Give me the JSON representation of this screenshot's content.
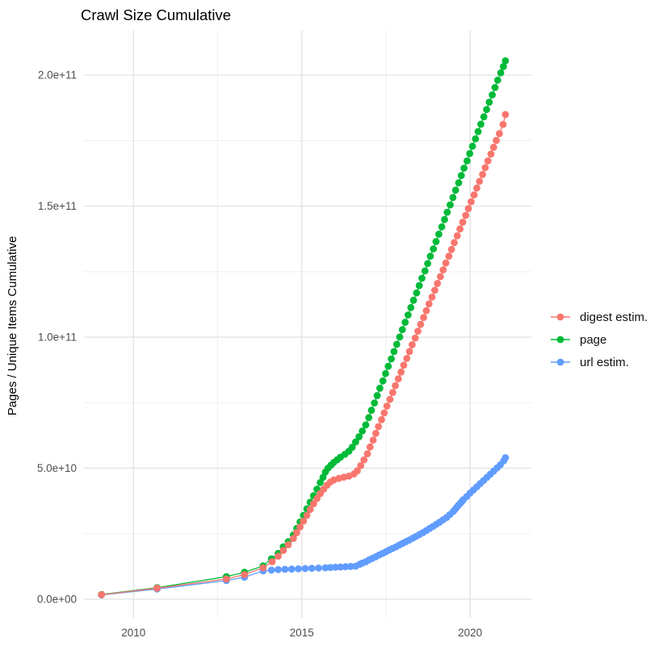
{
  "page": {
    "title": "Crawl Size Cumulative"
  },
  "chart_data": {
    "type": "line",
    "title": "Crawl Size Cumulative",
    "xlabel": "",
    "ylabel": "Pages / Unique Items Cumulative",
    "legend_position": "right",
    "grid": true,
    "value_unit": "billions (values are in units of 1e9)",
    "value_scale": 1000000000,
    "x_domain": [
      2008.53,
      2021.82
    ],
    "y_domain_e9": [
      -7.1,
      217.0
    ],
    "x_ticks": {
      "major": [
        {
          "v": 2010,
          "label": "2010"
        },
        {
          "v": 2015,
          "label": "2015"
        },
        {
          "v": 2020,
          "label": "2020"
        }
      ],
      "minor": [
        2012.5,
        2017.5
      ]
    },
    "y_ticks": {
      "major": [
        {
          "v": 0,
          "label": "0.0e+00"
        },
        {
          "v": 50,
          "label": "5.0e+10"
        },
        {
          "v": 100,
          "label": "1.0e+11"
        },
        {
          "v": 150,
          "label": "1.5e+11"
        },
        {
          "v": 200,
          "label": "2.0e+11"
        }
      ],
      "minor": [
        25,
        75,
        125,
        175
      ]
    },
    "series": [
      {
        "name": "digest estim.",
        "color": "#F8766D",
        "points": [
          [
            2009.05,
            1.7
          ],
          [
            2010.7,
            4.2
          ],
          [
            2012.76,
            7.7
          ],
          [
            2013.3,
            9.4
          ],
          [
            2013.85,
            12.0
          ],
          [
            2014.12,
            14.3
          ],
          [
            2014.3,
            16.4
          ],
          [
            2014.45,
            18.6
          ],
          [
            2014.6,
            20.8
          ],
          [
            2014.75,
            23.2
          ],
          [
            2014.85,
            25.4
          ],
          [
            2014.95,
            27.6
          ],
          [
            2015.05,
            29.8
          ],
          [
            2015.15,
            32.0
          ],
          [
            2015.25,
            34.2
          ],
          [
            2015.35,
            36.4
          ],
          [
            2015.45,
            38.4
          ],
          [
            2015.55,
            40.3
          ],
          [
            2015.65,
            42.0
          ],
          [
            2015.75,
            43.5
          ],
          [
            2015.85,
            44.7
          ],
          [
            2015.95,
            45.5
          ],
          [
            2016.1,
            46.1
          ],
          [
            2016.25,
            46.6
          ],
          [
            2016.4,
            47.0
          ],
          [
            2016.55,
            47.8
          ],
          [
            2016.65,
            49.0
          ],
          [
            2016.75,
            51.0
          ],
          [
            2016.85,
            53.2
          ],
          [
            2016.95,
            55.5
          ],
          [
            2017.03,
            58.1
          ],
          [
            2017.12,
            60.7
          ],
          [
            2017.2,
            63.3
          ],
          [
            2017.28,
            65.9
          ],
          [
            2017.37,
            68.5
          ],
          [
            2017.45,
            71.1
          ],
          [
            2017.53,
            73.7
          ],
          [
            2017.62,
            76.3
          ],
          [
            2017.7,
            78.9
          ],
          [
            2017.78,
            81.5
          ],
          [
            2017.87,
            84.1
          ],
          [
            2017.95,
            86.7
          ],
          [
            2018.03,
            89.3
          ],
          [
            2018.12,
            91.9
          ],
          [
            2018.2,
            94.5
          ],
          [
            2018.28,
            97.1
          ],
          [
            2018.37,
            99.7
          ],
          [
            2018.45,
            102.3
          ],
          [
            2018.53,
            104.9
          ],
          [
            2018.62,
            107.5
          ],
          [
            2018.7,
            110.1
          ],
          [
            2018.78,
            112.7
          ],
          [
            2018.87,
            115.3
          ],
          [
            2018.95,
            117.9
          ],
          [
            2019.03,
            120.5
          ],
          [
            2019.12,
            123.1
          ],
          [
            2019.2,
            125.7
          ],
          [
            2019.28,
            128.3
          ],
          [
            2019.37,
            130.9
          ],
          [
            2019.45,
            133.5
          ],
          [
            2019.53,
            136.1
          ],
          [
            2019.62,
            138.7
          ],
          [
            2019.7,
            141.3
          ],
          [
            2019.78,
            143.9
          ],
          [
            2019.87,
            146.5
          ],
          [
            2019.95,
            149.1
          ],
          [
            2020.03,
            151.7
          ],
          [
            2020.12,
            154.3
          ],
          [
            2020.2,
            156.9
          ],
          [
            2020.28,
            159.5
          ],
          [
            2020.37,
            162.1
          ],
          [
            2020.45,
            164.7
          ],
          [
            2020.53,
            167.3
          ],
          [
            2020.62,
            169.9
          ],
          [
            2020.7,
            172.5
          ],
          [
            2020.78,
            175.1
          ],
          [
            2020.87,
            177.7
          ],
          [
            2020.98,
            181.2
          ],
          [
            2021.05,
            185.0
          ]
        ]
      },
      {
        "name": "page",
        "color": "#00BA38",
        "points": [
          [
            2009.05,
            1.8
          ],
          [
            2010.7,
            4.4
          ],
          [
            2012.76,
            8.6
          ],
          [
            2013.3,
            10.3
          ],
          [
            2013.85,
            12.7
          ],
          [
            2014.1,
            15.4
          ],
          [
            2014.3,
            17.5
          ],
          [
            2014.45,
            20.0
          ],
          [
            2014.6,
            22.0
          ],
          [
            2014.75,
            24.5
          ],
          [
            2014.85,
            27.0
          ],
          [
            2014.95,
            29.5
          ],
          [
            2015.05,
            32.0
          ],
          [
            2015.15,
            34.5
          ],
          [
            2015.25,
            37.0
          ],
          [
            2015.35,
            39.5
          ],
          [
            2015.45,
            42.0
          ],
          [
            2015.55,
            44.5
          ],
          [
            2015.63,
            46.5
          ],
          [
            2015.7,
            48.5
          ],
          [
            2015.78,
            50.0
          ],
          [
            2015.87,
            51.2
          ],
          [
            2015.95,
            52.2
          ],
          [
            2016.05,
            53.2
          ],
          [
            2016.15,
            54.2
          ],
          [
            2016.28,
            55.3
          ],
          [
            2016.4,
            56.5
          ],
          [
            2016.5,
            58.0
          ],
          [
            2016.6,
            60.0
          ],
          [
            2016.7,
            62.0
          ],
          [
            2016.8,
            64.2
          ],
          [
            2016.9,
            66.5
          ],
          [
            2016.99,
            69.3
          ],
          [
            2017.07,
            72.1
          ],
          [
            2017.16,
            74.9
          ],
          [
            2017.24,
            77.7
          ],
          [
            2017.32,
            80.5
          ],
          [
            2017.41,
            83.3
          ],
          [
            2017.49,
            86.1
          ],
          [
            2017.57,
            88.9
          ],
          [
            2017.66,
            91.7
          ],
          [
            2017.74,
            94.5
          ],
          [
            2017.82,
            97.3
          ],
          [
            2017.91,
            100.1
          ],
          [
            2017.99,
            102.9
          ],
          [
            2018.07,
            105.7
          ],
          [
            2018.16,
            108.5
          ],
          [
            2018.24,
            111.3
          ],
          [
            2018.32,
            114.1
          ],
          [
            2018.41,
            116.9
          ],
          [
            2018.49,
            119.7
          ],
          [
            2018.57,
            122.5
          ],
          [
            2018.66,
            125.3
          ],
          [
            2018.74,
            128.1
          ],
          [
            2018.82,
            130.9
          ],
          [
            2018.91,
            133.7
          ],
          [
            2018.99,
            136.5
          ],
          [
            2019.07,
            139.3
          ],
          [
            2019.16,
            142.1
          ],
          [
            2019.24,
            144.9
          ],
          [
            2019.32,
            147.7
          ],
          [
            2019.41,
            150.5
          ],
          [
            2019.49,
            153.3
          ],
          [
            2019.57,
            156.1
          ],
          [
            2019.66,
            158.9
          ],
          [
            2019.74,
            161.7
          ],
          [
            2019.82,
            164.5
          ],
          [
            2019.91,
            167.3
          ],
          [
            2019.99,
            170.1
          ],
          [
            2020.07,
            172.9
          ],
          [
            2020.16,
            175.7
          ],
          [
            2020.24,
            178.5
          ],
          [
            2020.32,
            181.3
          ],
          [
            2020.41,
            184.1
          ],
          [
            2020.49,
            186.9
          ],
          [
            2020.57,
            189.7
          ],
          [
            2020.66,
            192.5
          ],
          [
            2020.74,
            195.3
          ],
          [
            2020.82,
            198.1
          ],
          [
            2020.91,
            200.9
          ],
          [
            2020.99,
            203.3
          ],
          [
            2021.05,
            205.5
          ]
        ]
      },
      {
        "name": "url estim.",
        "color": "#619CFF",
        "points": [
          [
            2009.05,
            1.6
          ],
          [
            2010.7,
            3.9
          ],
          [
            2012.76,
            7.1
          ],
          [
            2013.3,
            8.4
          ],
          [
            2013.85,
            10.8
          ],
          [
            2014.1,
            11.1
          ],
          [
            2014.3,
            11.3
          ],
          [
            2014.5,
            11.4
          ],
          [
            2014.7,
            11.5
          ],
          [
            2014.9,
            11.6
          ],
          [
            2015.1,
            11.7
          ],
          [
            2015.3,
            11.8
          ],
          [
            2015.5,
            11.9
          ],
          [
            2015.7,
            12.0
          ],
          [
            2015.85,
            12.1
          ],
          [
            2016.0,
            12.2
          ],
          [
            2016.15,
            12.3
          ],
          [
            2016.3,
            12.4
          ],
          [
            2016.45,
            12.5
          ],
          [
            2016.6,
            12.6
          ],
          [
            2016.72,
            13.3
          ],
          [
            2016.8,
            13.8
          ],
          [
            2016.9,
            14.3
          ],
          [
            2017.0,
            15.0
          ],
          [
            2017.1,
            15.6
          ],
          [
            2017.2,
            16.2
          ],
          [
            2017.3,
            16.9
          ],
          [
            2017.4,
            17.5
          ],
          [
            2017.5,
            18.1
          ],
          [
            2017.6,
            18.8
          ],
          [
            2017.7,
            19.4
          ],
          [
            2017.8,
            20.0
          ],
          [
            2017.9,
            20.7
          ],
          [
            2018.0,
            21.3
          ],
          [
            2018.1,
            22.0
          ],
          [
            2018.2,
            22.6
          ],
          [
            2018.3,
            23.3
          ],
          [
            2018.4,
            24.0
          ],
          [
            2018.5,
            24.7
          ],
          [
            2018.6,
            25.4
          ],
          [
            2018.7,
            26.2
          ],
          [
            2018.8,
            27.0
          ],
          [
            2018.9,
            27.8
          ],
          [
            2019.0,
            28.6
          ],
          [
            2019.1,
            29.4
          ],
          [
            2019.2,
            30.3
          ],
          [
            2019.3,
            31.2
          ],
          [
            2019.4,
            32.3
          ],
          [
            2019.5,
            33.5
          ],
          [
            2019.55,
            34.2
          ],
          [
            2019.6,
            35.0
          ],
          [
            2019.65,
            35.8
          ],
          [
            2019.7,
            36.5
          ],
          [
            2019.75,
            37.2
          ],
          [
            2019.8,
            38.0
          ],
          [
            2019.9,
            39.2
          ],
          [
            2020.0,
            40.5
          ],
          [
            2020.1,
            41.7
          ],
          [
            2020.2,
            42.9
          ],
          [
            2020.3,
            44.1
          ],
          [
            2020.4,
            45.3
          ],
          [
            2020.5,
            46.5
          ],
          [
            2020.6,
            47.7
          ],
          [
            2020.7,
            48.9
          ],
          [
            2020.8,
            50.1
          ],
          [
            2020.9,
            51.3
          ],
          [
            2021.0,
            52.8
          ],
          [
            2021.05,
            54.0
          ]
        ]
      }
    ]
  }
}
